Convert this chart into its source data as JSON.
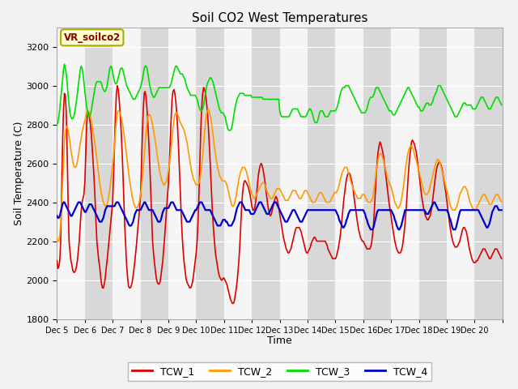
{
  "title": "Soil CO2 West Temperatures",
  "xlabel": "Time",
  "ylabel": "Soil Temperature (C)",
  "ylim": [
    1800,
    3300
  ],
  "annotation_label": "VR_soilco2",
  "fig_bg": "#f2f2f2",
  "plot_bg": "#e8e8e8",
  "band_light": "#f0f0f0",
  "band_dark": "#d8d8d8",
  "line_colors": [
    "#dd0000",
    "#ff9900",
    "#00dd00",
    "#0000cc"
  ],
  "line_labels": [
    "TCW_1",
    "TCW_2",
    "TCW_3",
    "TCW_4"
  ],
  "n_days": 16,
  "pts_per_day": 30
}
